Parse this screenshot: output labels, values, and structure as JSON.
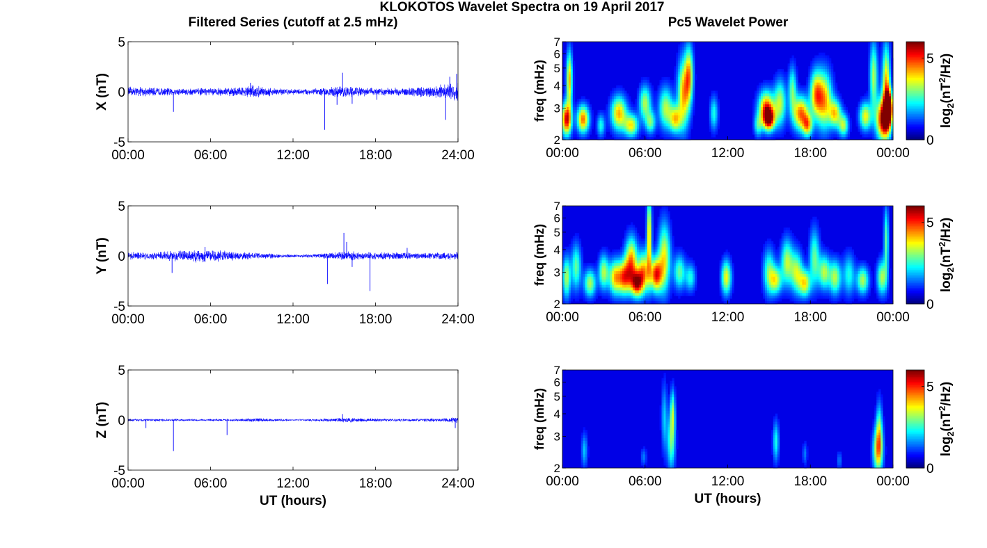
{
  "figure": {
    "title": "KLOKOTOS Wavelet Spectra on 19 April 2017",
    "left_column_title": "Filtered Series (cutoff at 2.5 mHz)",
    "right_column_title": "Pc5 Wavelet Power"
  },
  "chart_data": [
    {
      "type": "line",
      "name": "x-component-series",
      "ylabel": "X (nT)",
      "xlabel": "",
      "xlim": [
        0,
        24
      ],
      "ylim": [
        -5,
        5
      ],
      "xticks": [
        "00:00",
        "06:00",
        "12:00",
        "18:00",
        "24:00"
      ],
      "yticks": [
        -5,
        0,
        5
      ],
      "color": "#0000ff",
      "envelope": [
        [
          0,
          0.55
        ],
        [
          2,
          0.45
        ],
        [
          4,
          0.4
        ],
        [
          6,
          0.4
        ],
        [
          8,
          0.5
        ],
        [
          9,
          0.7
        ],
        [
          10,
          0.5
        ],
        [
          12,
          0.3
        ],
        [
          13,
          0.35
        ],
        [
          14,
          0.4
        ],
        [
          15,
          0.55
        ],
        [
          16,
          0.6
        ],
        [
          18,
          0.4
        ],
        [
          20,
          0.45
        ],
        [
          22,
          0.6
        ],
        [
          23,
          0.8
        ],
        [
          24,
          1.1
        ]
      ],
      "spikes": [
        [
          3.3,
          -2.0
        ],
        [
          8.9,
          0.9
        ],
        [
          14.3,
          -3.8
        ],
        [
          15.2,
          -1.3
        ],
        [
          15.6,
          1.9
        ],
        [
          16.3,
          -1.2
        ],
        [
          18.1,
          -0.8
        ],
        [
          23.1,
          -2.8
        ],
        [
          23.4,
          1.5
        ],
        [
          23.9,
          1.8
        ]
      ]
    },
    {
      "type": "heatmap",
      "name": "x-component-wavelet",
      "ylabel": "freq (mHz)",
      "xlabel": "",
      "xlim": [
        0,
        24
      ],
      "ylim": [
        2,
        7
      ],
      "yscale": "log",
      "xticks": [
        "00:00",
        "06:00",
        "12:00",
        "18:00",
        "00:00"
      ],
      "yticks": [
        2,
        3,
        4,
        5,
        6,
        7
      ],
      "colorbar": {
        "label": "log2(nT2/Hz)",
        "range": [
          0,
          6
        ],
        "ticks": [
          0,
          5
        ],
        "colormap": "jet"
      },
      "blobs": [
        [
          0.3,
          2.6,
          0.25,
          0.14,
          5.5
        ],
        [
          0.5,
          4.3,
          0.15,
          0.25,
          4.0
        ],
        [
          1.5,
          2.6,
          0.3,
          0.12,
          4.5
        ],
        [
          2.8,
          2.4,
          0.2,
          0.1,
          2.0
        ],
        [
          4.1,
          2.8,
          0.4,
          0.15,
          4.0
        ],
        [
          5.0,
          2.4,
          0.35,
          0.1,
          3.5
        ],
        [
          6.0,
          3.2,
          0.3,
          0.15,
          3.0
        ],
        [
          6.4,
          2.5,
          0.25,
          0.1,
          2.5
        ],
        [
          7.5,
          3.0,
          0.35,
          0.18,
          3.0
        ],
        [
          8.2,
          2.6,
          0.3,
          0.12,
          3.5
        ],
        [
          8.8,
          3.6,
          0.3,
          0.3,
          4.0
        ],
        [
          9.2,
          4.6,
          0.2,
          0.25,
          3.5
        ],
        [
          11.0,
          2.8,
          0.2,
          0.15,
          2.0
        ],
        [
          14.2,
          2.4,
          0.2,
          0.1,
          2.0
        ],
        [
          14.8,
          3.0,
          0.4,
          0.15,
          4.5
        ],
        [
          15.0,
          2.6,
          0.3,
          0.1,
          5.0
        ],
        [
          15.8,
          3.2,
          0.3,
          0.2,
          3.0
        ],
        [
          16.7,
          3.8,
          0.2,
          0.2,
          2.5
        ],
        [
          17.3,
          2.8,
          0.4,
          0.15,
          4.5
        ],
        [
          17.8,
          2.4,
          0.25,
          0.1,
          3.5
        ],
        [
          18.4,
          3.6,
          0.3,
          0.2,
          3.5
        ],
        [
          19.0,
          3.3,
          0.4,
          0.25,
          4.0
        ],
        [
          19.8,
          2.8,
          0.3,
          0.12,
          3.5
        ],
        [
          20.4,
          2.4,
          0.25,
          0.1,
          3.0
        ],
        [
          22.0,
          2.7,
          0.3,
          0.12,
          3.5
        ],
        [
          22.6,
          4.5,
          0.2,
          0.3,
          3.0
        ],
        [
          23.3,
          2.6,
          0.35,
          0.18,
          6.0
        ],
        [
          23.5,
          4.0,
          0.2,
          0.35,
          4.0
        ],
        [
          23.7,
          3.0,
          0.2,
          0.15,
          6.0
        ]
      ]
    },
    {
      "type": "line",
      "name": "y-component-series",
      "ylabel": "Y (nT)",
      "xlabel": "",
      "xlim": [
        0,
        24
      ],
      "ylim": [
        -5,
        5
      ],
      "xticks": [
        "00:00",
        "06:00",
        "12:00",
        "18:00",
        "24:00"
      ],
      "yticks": [
        -5,
        0,
        5
      ],
      "color": "#0000ff",
      "envelope": [
        [
          0,
          0.4
        ],
        [
          2,
          0.4
        ],
        [
          3,
          0.5
        ],
        [
          4,
          0.6
        ],
        [
          5,
          0.7
        ],
        [
          6,
          0.65
        ],
        [
          7,
          0.6
        ],
        [
          8,
          0.45
        ],
        [
          10,
          0.3
        ],
        [
          12,
          0.15
        ],
        [
          13,
          0.2
        ],
        [
          14,
          0.25
        ],
        [
          15,
          0.4
        ],
        [
          16,
          0.55
        ],
        [
          17,
          0.4
        ],
        [
          18,
          0.4
        ],
        [
          19,
          0.4
        ],
        [
          20,
          0.4
        ],
        [
          21,
          0.35
        ],
        [
          22,
          0.35
        ],
        [
          24,
          0.45
        ]
      ],
      "spikes": [
        [
          3.2,
          -1.7
        ],
        [
          5.6,
          0.9
        ],
        [
          14.5,
          -2.8
        ],
        [
          15.7,
          2.3
        ],
        [
          15.9,
          1.4
        ],
        [
          16.3,
          -1.1
        ],
        [
          17.6,
          -3.5
        ],
        [
          20.3,
          0.8
        ]
      ]
    },
    {
      "type": "heatmap",
      "name": "y-component-wavelet",
      "ylabel": "freq (mHz)",
      "xlabel": "",
      "xlim": [
        0,
        24
      ],
      "ylim": [
        2,
        7
      ],
      "yscale": "log",
      "xticks": [
        "00:00",
        "06:00",
        "12:00",
        "18:00",
        "00:00"
      ],
      "yticks": [
        2,
        3,
        4,
        5,
        6,
        7
      ],
      "colorbar": {
        "label": "log2(nT2/Hz)",
        "range": [
          0,
          6
        ],
        "ticks": [
          0,
          5
        ],
        "colormap": "jet"
      },
      "blobs": [
        [
          0.3,
          2.8,
          0.2,
          0.18,
          3.0
        ],
        [
          1.0,
          3.2,
          0.25,
          0.2,
          2.5
        ],
        [
          2.0,
          2.6,
          0.3,
          0.12,
          3.0
        ],
        [
          3.0,
          3.0,
          0.25,
          0.15,
          3.0
        ],
        [
          3.8,
          2.8,
          0.3,
          0.15,
          3.5
        ],
        [
          4.5,
          2.8,
          0.35,
          0.15,
          4.5
        ],
        [
          5.0,
          3.5,
          0.3,
          0.2,
          4.0
        ],
        [
          5.4,
          2.6,
          0.3,
          0.12,
          5.0
        ],
        [
          5.9,
          3.0,
          0.3,
          0.18,
          4.0
        ],
        [
          6.3,
          4.8,
          0.12,
          0.35,
          4.0
        ],
        [
          6.8,
          2.9,
          0.3,
          0.15,
          5.0
        ],
        [
          7.4,
          3.6,
          0.3,
          0.3,
          3.5
        ],
        [
          8.5,
          3.0,
          0.3,
          0.15,
          2.5
        ],
        [
          9.3,
          2.8,
          0.25,
          0.12,
          2.0
        ],
        [
          11.9,
          2.8,
          0.25,
          0.15,
          3.5
        ],
        [
          15.0,
          3.0,
          0.3,
          0.2,
          2.5
        ],
        [
          15.5,
          2.7,
          0.3,
          0.12,
          3.0
        ],
        [
          16.3,
          3.4,
          0.3,
          0.2,
          3.0
        ],
        [
          17.0,
          3.0,
          0.3,
          0.18,
          3.0
        ],
        [
          17.6,
          2.6,
          0.3,
          0.12,
          3.5
        ],
        [
          18.3,
          3.6,
          0.25,
          0.25,
          2.5
        ],
        [
          19.0,
          3.0,
          0.3,
          0.15,
          3.0
        ],
        [
          19.8,
          2.8,
          0.3,
          0.15,
          3.0
        ],
        [
          20.8,
          2.9,
          0.3,
          0.18,
          2.0
        ],
        [
          21.8,
          2.7,
          0.3,
          0.12,
          3.0
        ],
        [
          23.2,
          2.8,
          0.25,
          0.15,
          3.0
        ],
        [
          23.5,
          4.5,
          0.12,
          0.3,
          2.5
        ]
      ]
    },
    {
      "type": "line",
      "name": "z-component-series",
      "ylabel": "Z (nT)",
      "xlabel": "UT (hours)",
      "xlim": [
        0,
        24
      ],
      "ylim": [
        -5,
        5
      ],
      "xticks": [
        "00:00",
        "06:00",
        "12:00",
        "18:00",
        "24:00"
      ],
      "yticks": [
        -5,
        0,
        5
      ],
      "color": "#0000ff",
      "envelope": [
        [
          0,
          0.15
        ],
        [
          6,
          0.12
        ],
        [
          8,
          0.15
        ],
        [
          9,
          0.2
        ],
        [
          12,
          0.1
        ],
        [
          14,
          0.15
        ],
        [
          15,
          0.2
        ],
        [
          16,
          0.3
        ],
        [
          17,
          0.2
        ],
        [
          20,
          0.15
        ],
        [
          23,
          0.2
        ],
        [
          24,
          0.35
        ]
      ],
      "spikes": [
        [
          1.3,
          -0.8
        ],
        [
          3.3,
          -3.1
        ],
        [
          7.2,
          -1.5
        ],
        [
          15.6,
          0.6
        ],
        [
          23.8,
          -0.8
        ]
      ]
    },
    {
      "type": "heatmap",
      "name": "z-component-wavelet",
      "ylabel": "freq (mHz)",
      "xlabel": "UT (hours)",
      "xlim": [
        0,
        24
      ],
      "ylim": [
        2,
        7
      ],
      "yscale": "log",
      "xticks": [
        "00:00",
        "06:00",
        "12:00",
        "18:00",
        "00:00"
      ],
      "yticks": [
        2,
        3,
        4,
        5,
        6,
        7
      ],
      "colorbar": {
        "label": "log2(nT2/Hz)",
        "range": [
          0,
          6
        ],
        "ticks": [
          0,
          5
        ],
        "colormap": "jet"
      },
      "blobs": [
        [
          1.6,
          2.5,
          0.15,
          0.15,
          1.5
        ],
        [
          5.9,
          2.3,
          0.15,
          0.08,
          1.0
        ],
        [
          7.4,
          3.8,
          0.15,
          0.3,
          1.5
        ],
        [
          7.9,
          2.8,
          0.2,
          0.25,
          2.5
        ],
        [
          8.0,
          4.1,
          0.12,
          0.2,
          2.5
        ],
        [
          15.5,
          2.8,
          0.15,
          0.18,
          2.0
        ],
        [
          17.6,
          2.4,
          0.12,
          0.1,
          1.0
        ],
        [
          20.1,
          2.2,
          0.12,
          0.08,
          1.0
        ],
        [
          22.9,
          2.5,
          0.25,
          0.2,
          3.5
        ],
        [
          23.0,
          3.2,
          0.15,
          0.25,
          2.5
        ]
      ]
    }
  ]
}
